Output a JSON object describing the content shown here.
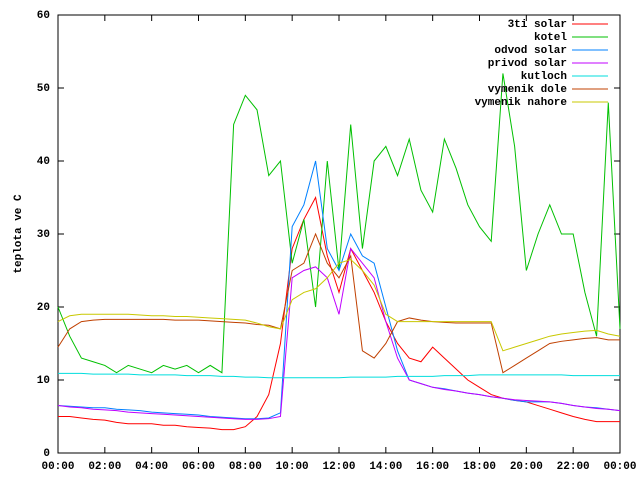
{
  "chart_data": {
    "type": "line",
    "ylabel": "teplota ve C",
    "x": [
      0,
      0.5,
      1,
      1.5,
      2,
      2.5,
      3,
      3.5,
      4,
      4.5,
      5,
      5.5,
      6,
      6.5,
      7,
      7.5,
      8,
      8.5,
      9,
      9.5,
      10,
      10.5,
      11,
      11.5,
      12,
      12.5,
      13,
      13.5,
      14,
      14.5,
      15,
      15.5,
      16,
      16.5,
      17,
      17.5,
      18,
      18.5,
      19,
      19.5,
      20,
      20.5,
      21,
      21.5,
      22,
      22.5,
      23,
      23.5,
      24
    ],
    "xlim": [
      0,
      24
    ],
    "xticks": [
      {
        "value": 0,
        "label": "00:00"
      },
      {
        "value": 2,
        "label": "02:00"
      },
      {
        "value": 4,
        "label": "04:00"
      },
      {
        "value": 6,
        "label": "06:00"
      },
      {
        "value": 8,
        "label": "08:00"
      },
      {
        "value": 10,
        "label": "10:00"
      },
      {
        "value": 12,
        "label": "12:00"
      },
      {
        "value": 14,
        "label": "14:00"
      },
      {
        "value": 16,
        "label": "16:00"
      },
      {
        "value": 18,
        "label": "18:00"
      },
      {
        "value": 20,
        "label": "20:00"
      },
      {
        "value": 22,
        "label": "22:00"
      },
      {
        "value": 24,
        "label": "00:00"
      }
    ],
    "ylim": [
      0,
      60
    ],
    "yticks": [
      0,
      10,
      20,
      30,
      40,
      50,
      60
    ],
    "legend": "top-right",
    "series": [
      {
        "name": "3ti solar",
        "color": "#ff0000",
        "values": [
          5,
          5,
          4.8,
          4.6,
          4.5,
          4.2,
          4,
          4,
          4,
          3.8,
          3.8,
          3.6,
          3.5,
          3.4,
          3.2,
          3.2,
          3.6,
          5,
          8,
          15,
          28,
          32,
          35,
          27,
          22,
          28,
          25,
          22,
          18,
          15,
          13,
          12.5,
          14.5,
          13,
          11.5,
          10,
          9,
          8,
          7.5,
          7.2,
          7,
          6.5,
          6,
          5.5,
          5,
          4.6,
          4.3,
          4.3,
          4.3
        ]
      },
      {
        "name": "kotel",
        "color": "#00c000",
        "values": [
          20,
          16,
          13,
          12.5,
          12,
          11,
          12,
          11.5,
          11,
          12,
          11.5,
          12,
          11,
          12,
          11,
          45,
          49,
          47,
          38,
          40,
          26,
          32,
          20,
          40,
          25,
          45,
          28,
          40,
          42,
          38,
          43,
          36,
          33,
          43,
          39,
          34,
          31,
          29,
          52,
          42,
          25,
          30,
          34,
          30,
          30,
          22,
          16,
          48,
          17
        ]
      },
      {
        "name": "odvod solar",
        "color": "#0080ff",
        "values": [
          6.5,
          6.4,
          6.3,
          6.2,
          6.2,
          6,
          5.9,
          5.8,
          5.6,
          5.5,
          5.4,
          5.3,
          5.2,
          5,
          4.9,
          4.8,
          4.7,
          4.7,
          4.8,
          5.5,
          31,
          34,
          40,
          28,
          25,
          30,
          27,
          26,
          20,
          14,
          10,
          9.5,
          9,
          8.8,
          8.5,
          8.2,
          8,
          7.7,
          7.5,
          7.2,
          7,
          7,
          7,
          6.8,
          6.5,
          6.3,
          6.2,
          6,
          5.8
        ]
      },
      {
        "name": "privod solar",
        "color": "#c000ff",
        "values": [
          6.5,
          6.3,
          6.2,
          6,
          5.9,
          5.8,
          5.6,
          5.5,
          5.4,
          5.3,
          5.2,
          5.1,
          5,
          4.9,
          4.8,
          4.7,
          4.6,
          4.6,
          4.7,
          5,
          24,
          25,
          25.5,
          24,
          19,
          28,
          26,
          24,
          18,
          13,
          10,
          9.5,
          9,
          8.7,
          8.5,
          8.2,
          8,
          7.7,
          7.5,
          7.3,
          7.2,
          7.1,
          7,
          6.8,
          6.5,
          6.3,
          6.1,
          6,
          5.8
        ]
      },
      {
        "name": "kutloch",
        "color": "#00dddd",
        "values": [
          10.9,
          10.9,
          10.9,
          10.8,
          10.8,
          10.8,
          10.8,
          10.7,
          10.7,
          10.7,
          10.7,
          10.6,
          10.6,
          10.6,
          10.5,
          10.5,
          10.4,
          10.4,
          10.3,
          10.3,
          10.3,
          10.3,
          10.3,
          10.3,
          10.3,
          10.4,
          10.4,
          10.4,
          10.4,
          10.5,
          10.5,
          10.5,
          10.5,
          10.6,
          10.6,
          10.6,
          10.7,
          10.7,
          10.7,
          10.7,
          10.7,
          10.7,
          10.7,
          10.7,
          10.6,
          10.6,
          10.6,
          10.6,
          10.6
        ]
      },
      {
        "name": "vymenik dole",
        "color": "#c04000",
        "values": [
          14.5,
          17,
          18,
          18.2,
          18.3,
          18.3,
          18.3,
          18.3,
          18.3,
          18.3,
          18.2,
          18.2,
          18.2,
          18.1,
          18,
          17.9,
          17.8,
          17.6,
          17.5,
          17,
          25,
          26,
          30,
          26,
          24,
          27,
          14,
          13,
          15,
          18,
          18.5,
          18.2,
          18,
          17.9,
          17.8,
          17.8,
          17.8,
          17.8,
          11,
          12,
          13,
          14,
          15,
          15.3,
          15.5,
          15.7,
          15.8,
          15.5,
          15.5
        ]
      },
      {
        "name": "vymenik nahore",
        "color": "#c8c800",
        "values": [
          18,
          18.8,
          19,
          19,
          19,
          19,
          19,
          18.9,
          18.8,
          18.8,
          18.7,
          18.7,
          18.6,
          18.5,
          18.4,
          18.3,
          18.2,
          17.8,
          17.3,
          17,
          21,
          22,
          22.5,
          24,
          26,
          26.5,
          25,
          23,
          19,
          18,
          18,
          18,
          18,
          18,
          18,
          18,
          18,
          18,
          14,
          14.5,
          15,
          15.5,
          16,
          16.3,
          16.5,
          16.7,
          16.8,
          16.3,
          16
        ]
      }
    ]
  }
}
